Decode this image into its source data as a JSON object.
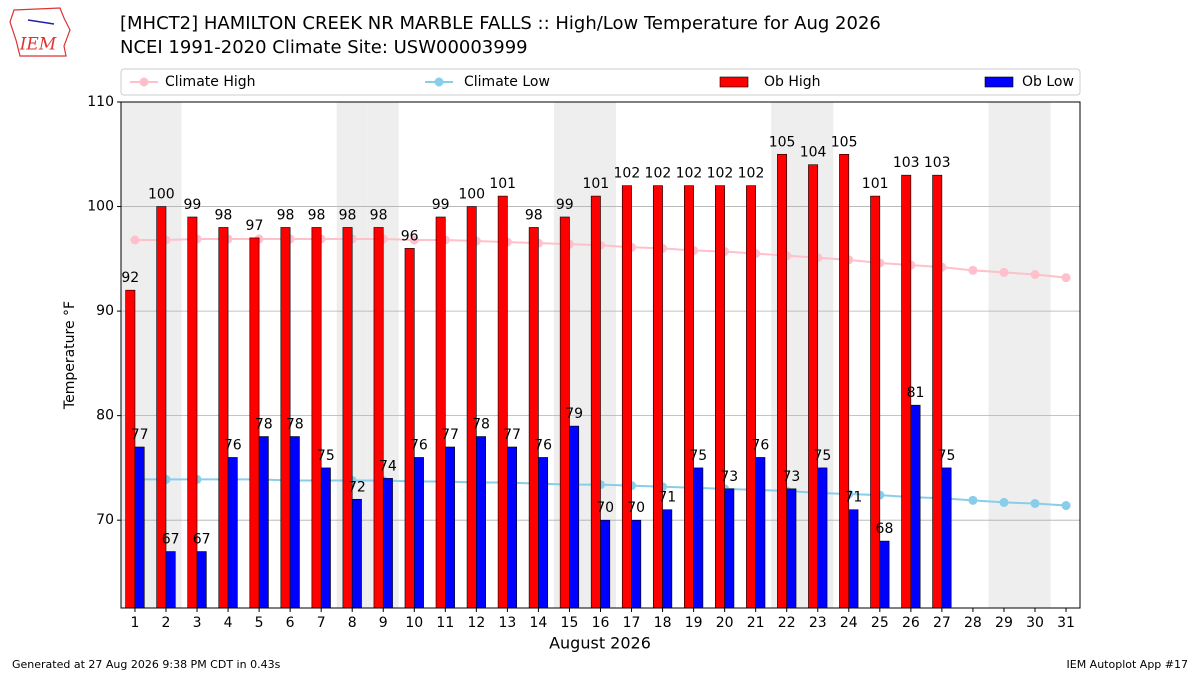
{
  "logo": "IEM",
  "footer_left": "Generated at 27 Aug 2026 9:38 PM CDT in 0.43s",
  "footer_right": "IEM Autoplot App #17",
  "chart_data": {
    "type": "bar",
    "title": "[MHCT2] HAMILTON CREEK NR MARBLE FALLS :: High/Low Temperature for Aug 2026",
    "subtitle": "NCEI 1991-2020 Climate Site: USW00003999",
    "ylabel": "Temperature °F",
    "xlabel": "August 2026",
    "x": [
      1,
      2,
      3,
      4,
      5,
      6,
      7,
      8,
      9,
      10,
      11,
      12,
      13,
      14,
      15,
      16,
      17,
      18,
      19,
      20,
      21,
      22,
      23,
      24,
      25,
      26,
      27,
      28,
      29,
      30,
      31
    ],
    "xlim": [
      0.55,
      31.45
    ],
    "xticks": [
      1,
      2,
      3,
      4,
      5,
      6,
      7,
      8,
      9,
      10,
      11,
      12,
      13,
      14,
      15,
      16,
      17,
      18,
      19,
      20,
      21,
      22,
      23,
      24,
      25,
      26,
      27,
      28,
      29,
      30,
      31
    ],
    "ylim": [
      61.6,
      110
    ],
    "yticks": [
      70,
      80,
      90,
      100,
      110
    ],
    "grid": true,
    "shaded_days": [
      1,
      2,
      8,
      9,
      15,
      16,
      22,
      23,
      29,
      30
    ],
    "shade_color": "#eeeeee",
    "legend": "top",
    "series": [
      {
        "name": "Climate High",
        "type": "line",
        "color": "#ffc0cb",
        "values": [
          96.8,
          96.8,
          96.9,
          96.9,
          96.9,
          96.9,
          96.9,
          96.9,
          96.9,
          96.8,
          96.8,
          96.7,
          96.6,
          96.5,
          96.4,
          96.3,
          96.1,
          96.0,
          95.8,
          95.7,
          95.5,
          95.3,
          95.1,
          94.9,
          94.6,
          94.4,
          94.2,
          93.9,
          93.7,
          93.5,
          93.2
        ]
      },
      {
        "name": "Climate Low",
        "type": "line",
        "color": "#87ceeb",
        "values": [
          73.9,
          73.9,
          73.9,
          73.9,
          73.9,
          73.8,
          73.8,
          73.8,
          73.8,
          73.7,
          73.7,
          73.6,
          73.6,
          73.5,
          73.4,
          73.4,
          73.3,
          73.2,
          73.1,
          73.0,
          72.9,
          72.8,
          72.6,
          72.5,
          72.4,
          72.2,
          72.1,
          71.9,
          71.7,
          71.6,
          71.4
        ]
      },
      {
        "name": "Ob High",
        "type": "bar",
        "color": "#ff0000",
        "values": [
          92,
          100,
          99,
          98,
          97,
          98,
          98,
          98,
          98,
          96,
          99,
          100,
          101,
          98,
          99,
          101,
          102,
          102,
          102,
          102,
          102,
          105,
          104,
          105,
          101,
          103,
          103,
          null,
          null,
          null,
          null
        ]
      },
      {
        "name": "Ob Low",
        "type": "bar",
        "color": "#0000ff",
        "values": [
          77,
          67,
          67,
          76,
          78,
          78,
          75,
          72,
          74,
          76,
          77,
          78,
          77,
          76,
          79,
          70,
          70,
          71,
          75,
          73,
          76,
          73,
          75,
          71,
          68,
          81,
          75,
          null,
          null,
          null,
          null
        ]
      }
    ]
  }
}
